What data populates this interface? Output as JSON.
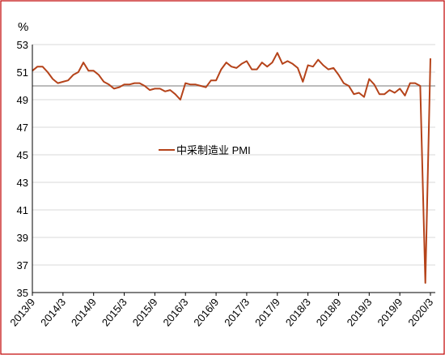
{
  "chart_data": {
    "type": "line",
    "title": "",
    "ylabel": "%",
    "xlabel": "",
    "ylim": [
      35,
      53
    ],
    "yticks": [
      35,
      37,
      39,
      41,
      43,
      45,
      47,
      49,
      51,
      53
    ],
    "x_tick_labels": [
      "2013/9",
      "2014/3",
      "2014/9",
      "2015/3",
      "2015/9",
      "2016/3",
      "2016/9",
      "2017/3",
      "2017/9",
      "2018/3",
      "2018/9",
      "2019/3",
      "2019/9",
      "2020/3"
    ],
    "x_start": "2013/9",
    "x_end": "2020/3",
    "reference_line": {
      "y": 50,
      "color": "#a6a6a6"
    },
    "legend": {
      "position": "center-left",
      "label": "中采制造业 PMI"
    },
    "series": [
      {
        "name": "中采制造业 PMI",
        "color": "#b5431a",
        "values": [
          51.1,
          51.4,
          51.4,
          51.0,
          50.5,
          50.2,
          50.3,
          50.4,
          50.8,
          51.0,
          51.7,
          51.1,
          51.1,
          50.8,
          50.3,
          50.1,
          49.8,
          49.9,
          50.1,
          50.1,
          50.2,
          50.2,
          50.0,
          49.7,
          49.8,
          49.8,
          49.6,
          49.7,
          49.4,
          49.0,
          50.2,
          50.1,
          50.1,
          50.0,
          49.9,
          50.4,
          50.4,
          51.2,
          51.7,
          51.4,
          51.3,
          51.6,
          51.8,
          51.2,
          51.2,
          51.7,
          51.4,
          51.7,
          52.4,
          51.6,
          51.8,
          51.6,
          51.3,
          50.3,
          51.5,
          51.4,
          51.9,
          51.5,
          51.2,
          51.3,
          50.8,
          50.2,
          50.0,
          49.4,
          49.5,
          49.2,
          50.5,
          50.1,
          49.4,
          49.4,
          49.7,
          49.5,
          49.8,
          49.3,
          50.2,
          50.2,
          50.0,
          35.7,
          52.0
        ]
      }
    ]
  }
}
